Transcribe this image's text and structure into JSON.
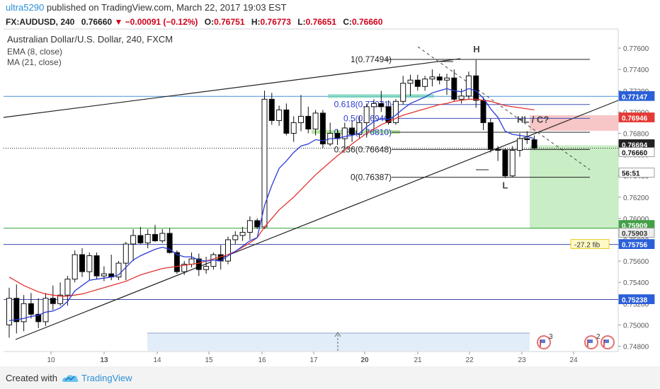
{
  "header": {
    "author": "ultra5290",
    "published": "published on TradingView.com, March 22, 2017 19:03 EST",
    "symbol": "FX:AUDUSD, 240",
    "last": "0.76660",
    "change_arrow": "▼",
    "change": "−0.00091 (−0.12%)",
    "o_label": "O:",
    "o": "0.76751",
    "h_label": "H:",
    "h": "0.76773",
    "l_label": "L:",
    "l": "0.76651",
    "c_label": "C:",
    "c": "0.76660"
  },
  "legend": {
    "title": "Australian Dollar/U.S. Dollar, 240, FXCM",
    "ema": "EMA (8, close)",
    "ma": "MA (21, close)"
  },
  "footer": {
    "created_with": "Created with",
    "brand": "TradingView"
  },
  "colors": {
    "up_candle": "#ffffff",
    "down_candle": "#000000",
    "ema": "#2a3bd8",
    "ma": "#e3342f",
    "price_axis_blue": "#2b5fd8",
    "price_axis_red": "#e53935",
    "price_axis_green": "#43a047",
    "target_zone": "#c9edc4",
    "stop_zone": "#f7c6c6",
    "brand": "#2b8fd8"
  },
  "icons": [
    "tradingview-logo-icon",
    "flag-event-icon",
    "scroll-arrow-icon"
  ],
  "chart_data": {
    "type": "candlestick",
    "ylim": [
      0.7475,
      0.7778
    ],
    "x_tick_labels": [
      "10",
      "13",
      "14",
      "15",
      "16",
      "17",
      "20",
      "21",
      "22",
      "23",
      "24"
    ],
    "y_tick_labels": [
      "0.77600",
      "0.77400",
      "0.77200",
      "0.77000",
      "0.76800",
      "0.76600",
      "0.76400",
      "0.76200",
      "0.76000",
      "0.75800",
      "0.75600",
      "0.75400",
      "0.75200",
      "0.75000",
      "0.74800"
    ],
    "candles": [
      {
        "o": 0.75,
        "h": 0.7535,
        "l": 0.7488,
        "c": 0.7525
      },
      {
        "o": 0.7525,
        "h": 0.7538,
        "l": 0.7492,
        "c": 0.7503
      },
      {
        "o": 0.7503,
        "h": 0.7528,
        "l": 0.7494,
        "c": 0.752
      },
      {
        "o": 0.752,
        "h": 0.753,
        "l": 0.7506,
        "c": 0.751
      },
      {
        "o": 0.751,
        "h": 0.7525,
        "l": 0.7497,
        "c": 0.7503
      },
      {
        "o": 0.7503,
        "h": 0.753,
        "l": 0.7499,
        "c": 0.7525
      },
      {
        "o": 0.7525,
        "h": 0.7537,
        "l": 0.7514,
        "c": 0.752
      },
      {
        "o": 0.752,
        "h": 0.754,
        "l": 0.7518,
        "c": 0.7528
      },
      {
        "o": 0.7528,
        "h": 0.7546,
        "l": 0.7518,
        "c": 0.7543
      },
      {
        "o": 0.7543,
        "h": 0.757,
        "l": 0.754,
        "c": 0.7566
      },
      {
        "o": 0.7566,
        "h": 0.7572,
        "l": 0.7545,
        "c": 0.755
      },
      {
        "o": 0.755,
        "h": 0.7568,
        "l": 0.7542,
        "c": 0.7565
      },
      {
        "o": 0.7565,
        "h": 0.7568,
        "l": 0.7543,
        "c": 0.7546
      },
      {
        "o": 0.7546,
        "h": 0.7555,
        "l": 0.7541,
        "c": 0.7548
      },
      {
        "o": 0.7548,
        "h": 0.7566,
        "l": 0.7542,
        "c": 0.7545
      },
      {
        "o": 0.7545,
        "h": 0.756,
        "l": 0.7542,
        "c": 0.7558
      },
      {
        "o": 0.7558,
        "h": 0.7578,
        "l": 0.7542,
        "c": 0.7576
      },
      {
        "o": 0.7576,
        "h": 0.759,
        "l": 0.756,
        "c": 0.7584
      },
      {
        "o": 0.7584,
        "h": 0.7592,
        "l": 0.7576,
        "c": 0.7577
      },
      {
        "o": 0.7577,
        "h": 0.759,
        "l": 0.7572,
        "c": 0.7585
      },
      {
        "o": 0.7585,
        "h": 0.7594,
        "l": 0.7578,
        "c": 0.7579
      },
      {
        "o": 0.7579,
        "h": 0.759,
        "l": 0.7577,
        "c": 0.7586
      },
      {
        "o": 0.7586,
        "h": 0.7591,
        "l": 0.7567,
        "c": 0.7568
      },
      {
        "o": 0.7568,
        "h": 0.757,
        "l": 0.7548,
        "c": 0.755
      },
      {
        "o": 0.755,
        "h": 0.756,
        "l": 0.7547,
        "c": 0.7557
      },
      {
        "o": 0.7557,
        "h": 0.7568,
        "l": 0.7554,
        "c": 0.7562
      },
      {
        "o": 0.7562,
        "h": 0.7567,
        "l": 0.7546,
        "c": 0.7552
      },
      {
        "o": 0.7552,
        "h": 0.7564,
        "l": 0.7548,
        "c": 0.7555
      },
      {
        "o": 0.7555,
        "h": 0.7568,
        "l": 0.7552,
        "c": 0.7566
      },
      {
        "o": 0.7566,
        "h": 0.7575,
        "l": 0.7552,
        "c": 0.756
      },
      {
        "o": 0.756,
        "h": 0.7583,
        "l": 0.7557,
        "c": 0.758
      },
      {
        "o": 0.758,
        "h": 0.7588,
        "l": 0.7576,
        "c": 0.7584
      },
      {
        "o": 0.7584,
        "h": 0.7592,
        "l": 0.7579,
        "c": 0.7587
      },
      {
        "o": 0.7587,
        "h": 0.7602,
        "l": 0.758,
        "c": 0.7598
      },
      {
        "o": 0.7598,
        "h": 0.76,
        "l": 0.759,
        "c": 0.7592
      },
      {
        "o": 0.7592,
        "h": 0.772,
        "l": 0.759,
        "c": 0.7712
      },
      {
        "o": 0.7712,
        "h": 0.7718,
        "l": 0.7688,
        "c": 0.7692
      },
      {
        "o": 0.7692,
        "h": 0.7706,
        "l": 0.7687,
        "c": 0.7702
      },
      {
        "o": 0.7702,
        "h": 0.7708,
        "l": 0.7678,
        "c": 0.768
      },
      {
        "o": 0.768,
        "h": 0.7696,
        "l": 0.7672,
        "c": 0.769
      },
      {
        "o": 0.769,
        "h": 0.7716,
        "l": 0.7682,
        "c": 0.7696
      },
      {
        "o": 0.7696,
        "h": 0.7705,
        "l": 0.768,
        "c": 0.7684
      },
      {
        "o": 0.7684,
        "h": 0.7702,
        "l": 0.7678,
        "c": 0.7699
      },
      {
        "o": 0.7699,
        "h": 0.7702,
        "l": 0.7666,
        "c": 0.767
      },
      {
        "o": 0.767,
        "h": 0.769,
        "l": 0.7668,
        "c": 0.768
      },
      {
        "o": 0.768,
        "h": 0.7684,
        "l": 0.7669,
        "c": 0.7675
      },
      {
        "o": 0.7675,
        "h": 0.769,
        "l": 0.7666,
        "c": 0.7685
      },
      {
        "o": 0.7685,
        "h": 0.7692,
        "l": 0.7672,
        "c": 0.7679
      },
      {
        "o": 0.7679,
        "h": 0.7696,
        "l": 0.7675,
        "c": 0.769
      },
      {
        "o": 0.769,
        "h": 0.7708,
        "l": 0.7676,
        "c": 0.7705
      },
      {
        "o": 0.7705,
        "h": 0.7712,
        "l": 0.7682,
        "c": 0.7708
      },
      {
        "o": 0.7708,
        "h": 0.772,
        "l": 0.77,
        "c": 0.7705
      },
      {
        "o": 0.7705,
        "h": 0.7711,
        "l": 0.7688,
        "c": 0.769
      },
      {
        "o": 0.769,
        "h": 0.7712,
        "l": 0.7688,
        "c": 0.771
      },
      {
        "o": 0.771,
        "h": 0.7734,
        "l": 0.7707,
        "c": 0.7727
      },
      {
        "o": 0.7727,
        "h": 0.7735,
        "l": 0.7715,
        "c": 0.773
      },
      {
        "o": 0.773,
        "h": 0.7735,
        "l": 0.772,
        "c": 0.7724
      },
      {
        "o": 0.7724,
        "h": 0.7734,
        "l": 0.772,
        "c": 0.7731
      },
      {
        "o": 0.7731,
        "h": 0.774,
        "l": 0.7724,
        "c": 0.7733
      },
      {
        "o": 0.7733,
        "h": 0.7736,
        "l": 0.7726,
        "c": 0.773
      },
      {
        "o": 0.773,
        "h": 0.7736,
        "l": 0.7716,
        "c": 0.7732
      },
      {
        "o": 0.7732,
        "h": 0.774,
        "l": 0.771,
        "c": 0.7712
      },
      {
        "o": 0.7712,
        "h": 0.7722,
        "l": 0.7708,
        "c": 0.7715
      },
      {
        "o": 0.7715,
        "h": 0.7738,
        "l": 0.7712,
        "c": 0.7734
      },
      {
        "o": 0.7734,
        "h": 0.7749,
        "l": 0.7704,
        "c": 0.7711
      },
      {
        "o": 0.7711,
        "h": 0.7714,
        "l": 0.7683,
        "c": 0.769
      },
      {
        "o": 0.769,
        "h": 0.7694,
        "l": 0.7662,
        "c": 0.7665
      },
      {
        "o": 0.7665,
        "h": 0.7668,
        "l": 0.7654,
        "c": 0.7664
      },
      {
        "o": 0.7664,
        "h": 0.7666,
        "l": 0.7638,
        "c": 0.764
      },
      {
        "o": 0.764,
        "h": 0.7668,
        "l": 0.7639,
        "c": 0.7664
      },
      {
        "o": 0.7664,
        "h": 0.768,
        "l": 0.7658,
        "c": 0.7675
      },
      {
        "o": 0.7675,
        "h": 0.7682,
        "l": 0.767,
        "c": 0.7674
      },
      {
        "o": 0.7674,
        "h": 0.7678,
        "l": 0.7665,
        "c": 0.7666
      }
    ],
    "ema": [
      0.7504,
      0.7505,
      0.7506,
      0.7508,
      0.7509,
      0.7512,
      0.7513,
      0.7516,
      0.7522,
      0.7532,
      0.7537,
      0.7542,
      0.7543,
      0.7544,
      0.7545,
      0.7547,
      0.7554,
      0.7561,
      0.7565,
      0.7568,
      0.7571,
      0.7573,
      0.7571,
      0.7566,
      0.7564,
      0.7564,
      0.7561,
      0.756,
      0.7561,
      0.756,
      0.7565,
      0.7569,
      0.7574,
      0.7579,
      0.7582,
      0.7612,
      0.7631,
      0.7647,
      0.7654,
      0.7662,
      0.7668,
      0.767,
      0.7674,
      0.7673,
      0.7675,
      0.7675,
      0.7677,
      0.7678,
      0.768,
      0.7686,
      0.7691,
      0.7694,
      0.7693,
      0.7697,
      0.7703,
      0.7708,
      0.7711,
      0.7714,
      0.7718,
      0.772,
      0.7722,
      0.772,
      0.7719,
      0.7722,
      0.772,
      0.7713,
      0.7703,
      0.7695,
      0.7682,
      0.7679,
      0.7678,
      0.7677,
      0.7675
    ],
    "ma": [
      0.7545,
      0.7541,
      0.7537,
      0.7534,
      0.7531,
      0.7529,
      0.7528,
      0.7527,
      0.7527,
      0.7528,
      0.7529,
      0.7531,
      0.7533,
      0.7535,
      0.7537,
      0.7539,
      0.7541,
      0.7544,
      0.7547,
      0.7549,
      0.7551,
      0.7553,
      0.7554,
      0.7555,
      0.7556,
      0.7557,
      0.7558,
      0.756,
      0.7562,
      0.7564,
      0.7566,
      0.7569,
      0.7573,
      0.7577,
      0.7582,
      0.7592,
      0.76,
      0.7608,
      0.7614,
      0.762,
      0.7627,
      0.7634,
      0.7641,
      0.7647,
      0.7653,
      0.7659,
      0.7664,
      0.767,
      0.7675,
      0.768,
      0.7684,
      0.7688,
      0.7691,
      0.7694,
      0.7697,
      0.7699,
      0.7701,
      0.7703,
      0.7705,
      0.7707,
      0.7708,
      0.771,
      0.7711,
      0.7712,
      0.7712,
      0.7711,
      0.771,
      0.7708,
      0.7706,
      0.7705,
      0.7704,
      0.7703,
      0.7702
    ],
    "fib_levels": [
      {
        "ratio": "1",
        "value": 0.77494
      },
      {
        "ratio": "0.618",
        "value": 0.77071
      },
      {
        "ratio": "0.5",
        "value": 0.7694
      },
      {
        "ratio": "0.382",
        "value": 0.7681
      },
      {
        "ratio": "0.236",
        "value": 0.76648
      },
      {
        "ratio": "0",
        "value": 0.76387
      }
    ],
    "annotations": [
      {
        "text": "H",
        "x_index": 64,
        "y": 0.7756
      },
      {
        "text": "L",
        "x_index": 68,
        "y": 0.7628
      },
      {
        "text": "HL / C?",
        "x_index": 70,
        "y": 0.769
      }
    ],
    "price_labels": [
      {
        "text": "0.77147",
        "value": 0.77147,
        "style": "blue"
      },
      {
        "text": "0.76946",
        "value": 0.76946,
        "style": "red"
      },
      {
        "text": "0.76694",
        "value": 0.76694,
        "style": "black"
      },
      {
        "text": "0.76660",
        "value": 0.7666,
        "style": "white"
      },
      {
        "text": "56:51",
        "value": 0.765,
        "style": "white"
      },
      {
        "text": "0.75909",
        "value": 0.75909,
        "style": "green"
      },
      {
        "text": "0.75903",
        "value": 0.75903,
        "style": "gray"
      },
      {
        "text": "0.75756",
        "value": 0.75756,
        "style": "blue"
      },
      {
        "text": "0.75238",
        "value": 0.75238,
        "style": "blue"
      }
    ],
    "fib_extension_label": "-27.2 fib",
    "event_counts": [
      "3",
      "2"
    ]
  }
}
